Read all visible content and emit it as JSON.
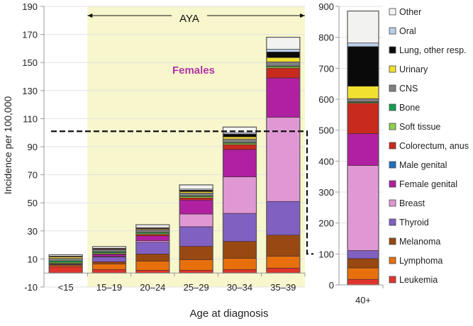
{
  "chart_data": [
    {
      "type": "bar",
      "stacked": true,
      "title": "",
      "annotation_group": "Females",
      "aya_label": "AYA",
      "xlabel": "Age at diagnosis",
      "ylabel": "Incidence per 100,000",
      "ylim": [
        -10,
        190
      ],
      "yticks": [
        -10,
        10,
        30,
        50,
        70,
        90,
        110,
        130,
        150,
        170,
        190
      ],
      "grid": true,
      "categories": [
        "<15",
        "15–19",
        "20–24",
        "25–29",
        "30–34",
        "35–39"
      ],
      "aya_categories": [
        "15–19",
        "20–24",
        "25–29",
        "30–34",
        "35–39"
      ],
      "reference_line": {
        "value": 101,
        "style": "dashed",
        "links_to_right_axis_value": 100
      },
      "series": [
        {
          "name": "Leukemia",
          "values": [
            4.5,
            2.5,
            2.0,
            2.0,
            2.5,
            3.5
          ]
        },
        {
          "name": "Lymphoma",
          "values": [
            1.0,
            4.0,
            6.5,
            7.5,
            8.0,
            8.5
          ]
        },
        {
          "name": "Melanoma",
          "values": [
            0.3,
            1.5,
            5.0,
            9.5,
            12.0,
            15.0
          ]
        },
        {
          "name": "Thyroid",
          "values": [
            0.5,
            3.5,
            8.5,
            14.0,
            20.0,
            24.0
          ]
        },
        {
          "name": "Breast",
          "values": [
            0.0,
            0.3,
            1.0,
            9.0,
            26.0,
            60.0
          ]
        },
        {
          "name": "Female genital",
          "values": [
            0.3,
            1.5,
            3.5,
            10.0,
            19.5,
            28.0
          ]
        },
        {
          "name": "Male genital",
          "values": [
            0,
            0,
            0,
            0,
            0,
            0
          ]
        },
        {
          "name": "Colorectum, anus",
          "values": [
            0.2,
            0.4,
            1.0,
            1.5,
            3.5,
            7.0
          ]
        },
        {
          "name": "Soft tissue",
          "values": [
            0.8,
            0.7,
            0.8,
            1.0,
            1.0,
            1.0
          ]
        },
        {
          "name": "Bone",
          "values": [
            1.0,
            0.8,
            0.7,
            0.5,
            0.5,
            0.5
          ]
        },
        {
          "name": "CNS",
          "values": [
            1.8,
            1.5,
            1.8,
            2.0,
            2.5,
            3.0
          ]
        },
        {
          "name": "Urinary",
          "values": [
            1.0,
            0.3,
            0.6,
            1.0,
            1.5,
            3.0
          ]
        },
        {
          "name": "Lung, other resp.",
          "values": [
            0.3,
            0.3,
            0.5,
            1.0,
            2.0,
            4.0
          ]
        },
        {
          "name": "Oral",
          "values": [
            0.3,
            0.3,
            0.5,
            0.8,
            1.0,
            2.0
          ]
        },
        {
          "name": "Other",
          "values": [
            1.0,
            1.2,
            2.0,
            3.0,
            4.0,
            8.5
          ]
        }
      ]
    },
    {
      "type": "bar",
      "stacked": true,
      "title": "",
      "xlabel": "",
      "ylabel": "",
      "ylim": [
        0,
        900
      ],
      "yticks": [
        0,
        100,
        200,
        300,
        400,
        500,
        600,
        700,
        800,
        900
      ],
      "grid": true,
      "categories": [
        "40+"
      ],
      "legend_position": "right",
      "series": [
        {
          "name": "Leukemia",
          "values": [
            18
          ]
        },
        {
          "name": "Lymphoma",
          "values": [
            37
          ]
        },
        {
          "name": "Melanoma",
          "values": [
            30
          ]
        },
        {
          "name": "Thyroid",
          "values": [
            26
          ]
        },
        {
          "name": "Breast",
          "values": [
            275
          ]
        },
        {
          "name": "Female genital",
          "values": [
            103
          ]
        },
        {
          "name": "Male genital",
          "values": [
            0
          ]
        },
        {
          "name": "Colorectum, anus",
          "values": [
            98
          ]
        },
        {
          "name": "Soft tissue",
          "values": [
            3
          ]
        },
        {
          "name": "Bone",
          "values": [
            2
          ]
        },
        {
          "name": "CNS",
          "values": [
            10
          ]
        },
        {
          "name": "Urinary",
          "values": [
            40
          ]
        },
        {
          "name": "Lung, other resp.",
          "values": [
            128
          ]
        },
        {
          "name": "Oral",
          "values": [
            12
          ]
        },
        {
          "name": "Other",
          "values": [
            103
          ]
        }
      ]
    }
  ],
  "legend": [
    {
      "name": "Other",
      "color": "#f2f2f0"
    },
    {
      "name": "Oral",
      "color": "#b8cfe8"
    },
    {
      "name": "Lung, other resp.",
      "color": "#0a0a0a"
    },
    {
      "name": "Urinary",
      "color": "#f0e030"
    },
    {
      "name": "CNS",
      "color": "#808080"
    },
    {
      "name": "Bone",
      "color": "#10a050"
    },
    {
      "name": "Soft tissue",
      "color": "#90d050"
    },
    {
      "name": "Colorectum, anus",
      "color": "#c82a1e"
    },
    {
      "name": "Male genital",
      "color": "#2070c0"
    },
    {
      "name": "Female genital",
      "color": "#b020a0"
    },
    {
      "name": "Breast",
      "color": "#e098d4"
    },
    {
      "name": "Thyroid",
      "color": "#8060c0"
    },
    {
      "name": "Melanoma",
      "color": "#984810"
    },
    {
      "name": "Lymphoma",
      "color": "#e8700c"
    },
    {
      "name": "Leukemia",
      "color": "#e0352c"
    }
  ],
  "colors": {
    "aya_background": "#f8f6cc",
    "females_label": "#b033a8",
    "grid": "#e2e2e2",
    "axis": "#999999"
  }
}
